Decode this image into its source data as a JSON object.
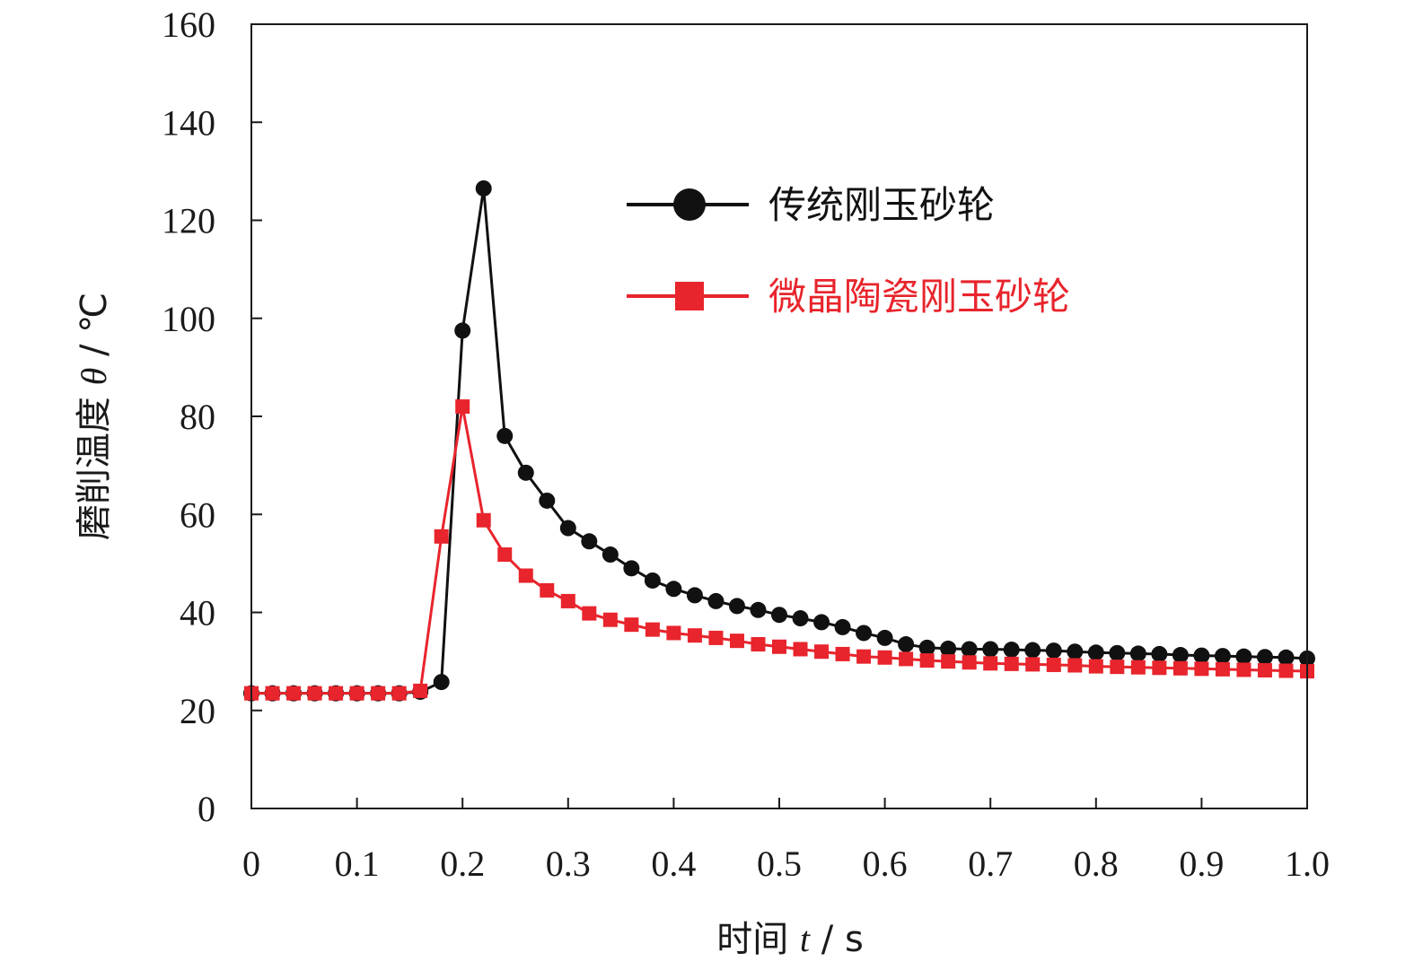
{
  "chart_data": {
    "type": "line",
    "xlabel_parts": [
      "时间 ",
      "t",
      " / s"
    ],
    "ylabel_parts": [
      "磨削温度 ",
      "θ",
      " / ℃"
    ],
    "xlim": [
      0,
      1.0
    ],
    "ylim": [
      0,
      160
    ],
    "xticks": [
      0,
      0.1,
      0.2,
      0.3,
      0.4,
      0.5,
      0.6,
      0.7,
      0.8,
      0.9,
      1.0
    ],
    "xtick_labels": [
      "0",
      "0.1",
      "0.2",
      "0.3",
      "0.4",
      "0.5",
      "0.6",
      "0.7",
      "0.8",
      "0.9",
      "1.0"
    ],
    "yticks": [
      0,
      20,
      40,
      60,
      80,
      100,
      120,
      140,
      160
    ],
    "ytick_labels": [
      "0",
      "20",
      "40",
      "60",
      "80",
      "100",
      "120",
      "140",
      "160"
    ],
    "grid": false,
    "legend_position": "top-right",
    "x": [
      0,
      0.02,
      0.04,
      0.06,
      0.08,
      0.1,
      0.12,
      0.14,
      0.16,
      0.18,
      0.2,
      0.22,
      0.24,
      0.26,
      0.28,
      0.3,
      0.32,
      0.34,
      0.36,
      0.38,
      0.4,
      0.42,
      0.44,
      0.46,
      0.48,
      0.5,
      0.52,
      0.54,
      0.56,
      0.58,
      0.6,
      0.62,
      0.64,
      0.66,
      0.68,
      0.7,
      0.72,
      0.74,
      0.76,
      0.78,
      0.8,
      0.82,
      0.84,
      0.86,
      0.88,
      0.9,
      0.92,
      0.94,
      0.96,
      0.98,
      1.0
    ],
    "series": [
      {
        "name": "传统刚玉砂轮",
        "color": "#111111",
        "marker": "circle",
        "values": [
          23.5,
          23.5,
          23.5,
          23.5,
          23.5,
          23.5,
          23.5,
          23.5,
          23.8,
          25.8,
          97.5,
          126.5,
          76.0,
          68.5,
          62.8,
          57.2,
          54.5,
          51.8,
          49.0,
          46.5,
          44.8,
          43.5,
          42.3,
          41.3,
          40.5,
          39.5,
          38.8,
          38.0,
          37.0,
          35.8,
          34.8,
          33.5,
          32.8,
          32.6,
          32.5,
          32.5,
          32.4,
          32.3,
          32.2,
          32.0,
          31.8,
          31.7,
          31.6,
          31.5,
          31.3,
          31.2,
          31.1,
          31.0,
          30.9,
          30.8,
          30.6
        ]
      },
      {
        "name": "微晶陶瓷刚玉砂轮",
        "color": "#e8242c",
        "marker": "square",
        "values": [
          23.5,
          23.5,
          23.5,
          23.5,
          23.5,
          23.5,
          23.5,
          23.5,
          24.0,
          55.5,
          82.0,
          58.8,
          51.8,
          47.5,
          44.5,
          42.3,
          39.8,
          38.5,
          37.5,
          36.5,
          35.8,
          35.3,
          34.8,
          34.2,
          33.5,
          33.0,
          32.5,
          32.0,
          31.5,
          31.0,
          30.8,
          30.5,
          30.2,
          30.0,
          29.8,
          29.6,
          29.5,
          29.4,
          29.3,
          29.2,
          29.0,
          28.9,
          28.8,
          28.7,
          28.6,
          28.5,
          28.4,
          28.3,
          28.2,
          28.1,
          28.0
        ]
      }
    ]
  }
}
